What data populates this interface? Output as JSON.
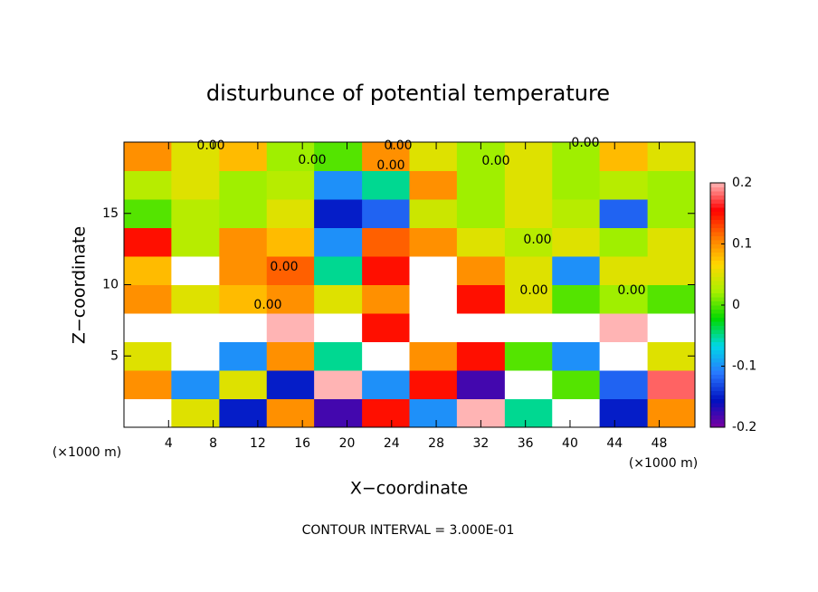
{
  "chart_data": {
    "type": "filled_contour",
    "title": "disturbunce of potential temperature",
    "x_label": "X−coordinate",
    "y_label": "Z−coordinate",
    "x_unit": "(×1000 m)",
    "y_unit": "(×1000 m)",
    "annotation": "CONTOUR INTERVAL = 3.000E-01",
    "contour_labels": [
      "0.00",
      "0.00",
      "0.00",
      "0.00",
      "0.00",
      "0.00",
      "0.00",
      "0.00",
      "0.00",
      "0.00",
      "0.00"
    ],
    "xlim": [
      0,
      51.2
    ],
    "ylim": [
      0,
      20
    ],
    "xticks": [
      4,
      8,
      12,
      16,
      20,
      24,
      28,
      32,
      36,
      40,
      44,
      48
    ],
    "yticks": [
      5,
      10,
      15
    ],
    "clim": [
      -0.2,
      0.2
    ],
    "cticks": [
      -0.2,
      -0.1,
      0,
      0.1,
      0.2
    ],
    "colors": [
      "#7a00a0",
      "#0010c0",
      "#2878ff",
      "#00d8e8",
      "#00d800",
      "#a8f000",
      "#ffd800",
      "#ff7800",
      "#ff0000",
      "#ffb4b4"
    ],
    "over_color": "#ffffff",
    "under_color": "#7a00a0",
    "x": [
      2.1,
      6.4,
      10.7,
      14.9,
      19.2,
      23.5,
      27.7,
      32,
      36.3,
      40.5,
      44.8,
      49.1
    ],
    "y": [
      1,
      3,
      5,
      7,
      9,
      11,
      13,
      15,
      17,
      19
    ],
    "z": [
      [
        0.25,
        0.05,
        -0.15,
        0.1,
        -0.18,
        0.15,
        -0.1,
        0.2,
        -0.05,
        0.25,
        -0.15,
        0.1
      ],
      [
        0.1,
        -0.1,
        0.05,
        -0.15,
        0.2,
        -0.1,
        0.15,
        -0.18,
        0.25,
        0,
        -0.12,
        0.18
      ],
      [
        0.05,
        0.25,
        -0.1,
        0.1,
        -0.05,
        0.22,
        0.1,
        0.15,
        0,
        -0.1,
        0.25,
        0.05
      ],
      [
        0.25,
        0.22,
        0.25,
        0.2,
        0.25,
        0.15,
        0.25,
        0.22,
        0.25,
        0.25,
        0.2,
        0.25
      ],
      [
        0.1,
        0.05,
        0.08,
        0.1,
        0.05,
        0.1,
        0.25,
        0.15,
        0.05,
        0,
        0.02,
        0
      ],
      [
        0.08,
        0.25,
        0.1,
        0.12,
        -0.05,
        0.15,
        0.25,
        0.1,
        0.05,
        -0.1,
        0.05,
        0.05
      ],
      [
        0.15,
        0.03,
        0.1,
        0.08,
        -0.1,
        0.12,
        0.1,
        0.05,
        0.03,
        0.05,
        0.02,
        0.05
      ],
      [
        0,
        0.03,
        0.02,
        0.05,
        -0.15,
        -0.12,
        0.04,
        0.02,
        0.05,
        0.03,
        -0.12,
        0.02
      ],
      [
        0.03,
        0.05,
        0.02,
        0.03,
        -0.1,
        -0.05,
        0.1,
        0.02,
        0.05,
        0.02,
        0.03,
        0.02
      ],
      [
        0.1,
        0.05,
        0.08,
        0.02,
        0,
        0.1,
        0.05,
        0.02,
        0.05,
        0.02,
        0.08,
        0.05
      ]
    ]
  }
}
